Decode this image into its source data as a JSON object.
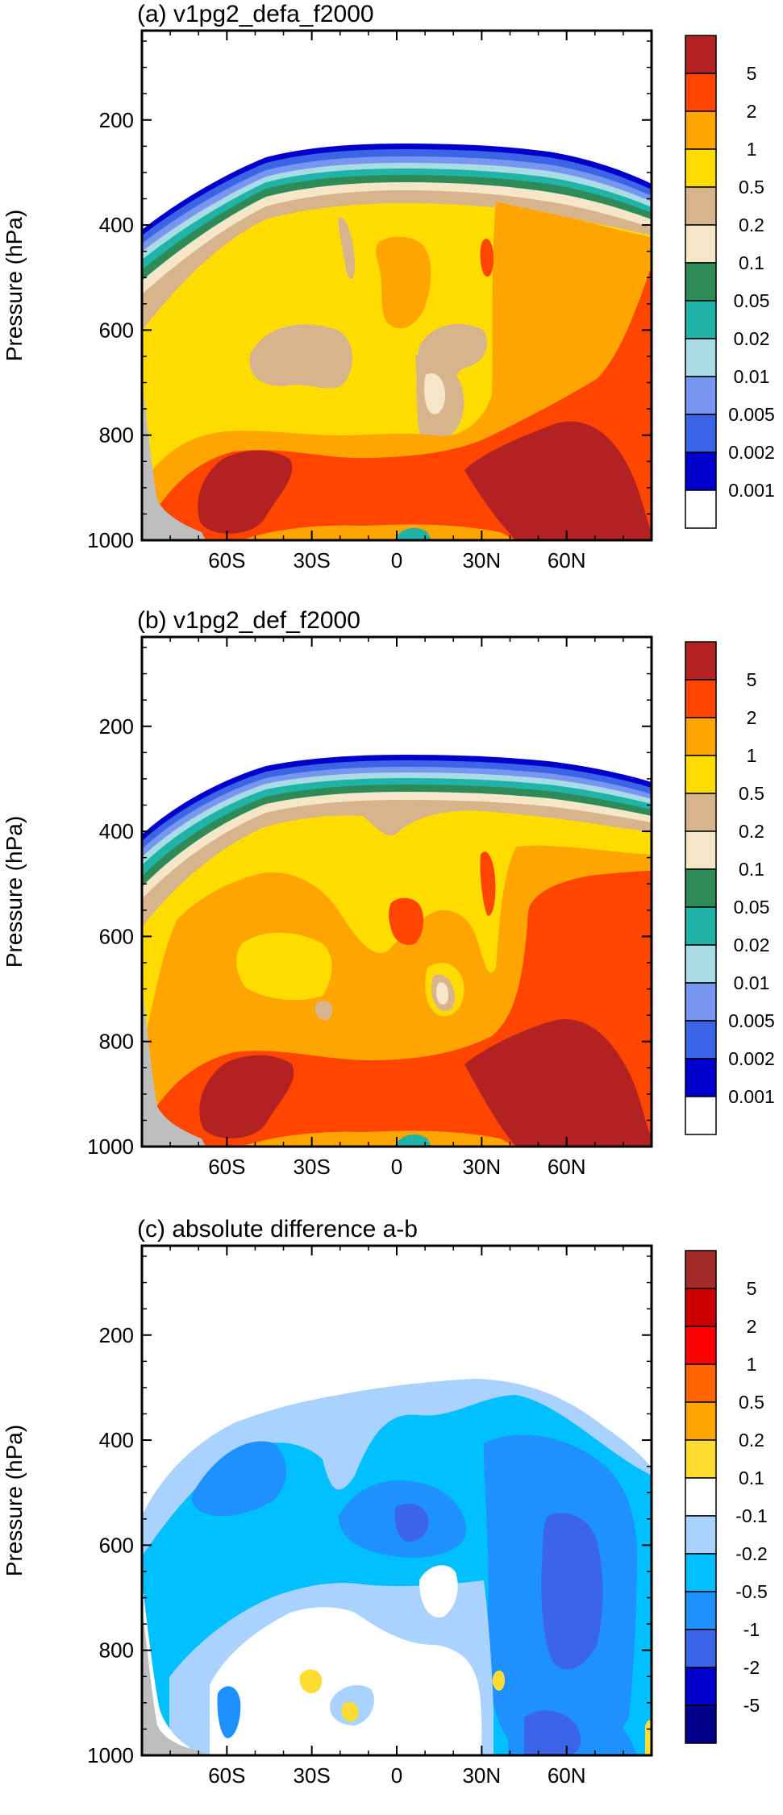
{
  "colors": {
    "seqA": [
      "#ffffff",
      "#0000cd",
      "#3c64e6",
      "#7896f0",
      "#aadce6",
      "#20b4a8",
      "#2e8b57",
      "#f5e6c8",
      "#d8b48c",
      "#ffdc00",
      "#ffa500",
      "#ff4500",
      "#b22222"
    ],
    "diff": [
      "#00008b",
      "#0000cd",
      "#3c64e6",
      "#1e90ff",
      "#00bfff",
      "#aad2ff",
      "#ffffff",
      "#ffdc32",
      "#ffa500",
      "#ff6400",
      "#ff0000",
      "#cd0000",
      "#a52a2a"
    ],
    "missing": "#bebebe"
  },
  "chart_data": [
    {
      "type": "contour",
      "title": "(a) v1pg2_defa_f2000",
      "ylabel": "Pressure (hPa)",
      "xlabel": "",
      "xlim": [
        -90,
        90
      ],
      "ylim": [
        1000,
        30
      ],
      "y_scale": "linear (inverted)",
      "x_ticks": [
        "60S",
        "30S",
        "0",
        "30N",
        "60N"
      ],
      "x_tick_values": [
        -60,
        -30,
        0,
        30,
        60
      ],
      "y_ticks": [
        "200",
        "400",
        "600",
        "800",
        "1000"
      ],
      "y_tick_values": [
        200,
        400,
        600,
        800,
        1000
      ],
      "colorbar_levels": [
        "0.001",
        "0.002",
        "0.005",
        "0.01",
        "0.02",
        "0.05",
        "0.1",
        "0.2",
        "0.5",
        "1",
        "2",
        "5"
      ]
    },
    {
      "type": "contour",
      "title": "(b) v1pg2_def_f2000",
      "ylabel": "Pressure (hPa)",
      "xlabel": "",
      "xlim": [
        -90,
        90
      ],
      "ylim": [
        1000,
        30
      ],
      "y_scale": "linear (inverted)",
      "x_ticks": [
        "60S",
        "30S",
        "0",
        "30N",
        "60N"
      ],
      "x_tick_values": [
        -60,
        -30,
        0,
        30,
        60
      ],
      "y_ticks": [
        "200",
        "400",
        "600",
        "800",
        "1000"
      ],
      "y_tick_values": [
        200,
        400,
        600,
        800,
        1000
      ],
      "colorbar_levels": [
        "0.001",
        "0.002",
        "0.005",
        "0.01",
        "0.02",
        "0.05",
        "0.1",
        "0.2",
        "0.5",
        "1",
        "2",
        "5"
      ]
    },
    {
      "type": "contour",
      "title": "(c) absolute difference a-b",
      "ylabel": "Pressure (hPa)",
      "xlabel": "",
      "xlim": [
        -90,
        90
      ],
      "ylim": [
        1000,
        30
      ],
      "y_scale": "linear (inverted)",
      "x_ticks": [
        "60S",
        "30S",
        "0",
        "30N",
        "60N"
      ],
      "x_tick_values": [
        -60,
        -30,
        0,
        30,
        60
      ],
      "y_ticks": [
        "200",
        "400",
        "600",
        "800",
        "1000"
      ],
      "y_tick_values": [
        200,
        400,
        600,
        800,
        1000
      ],
      "colorbar_levels": [
        "-5",
        "-2",
        "-1",
        "-0.5",
        "-0.2",
        "-0.1",
        "0.1",
        "0.2",
        "0.5",
        "1",
        "2",
        "5"
      ]
    }
  ]
}
